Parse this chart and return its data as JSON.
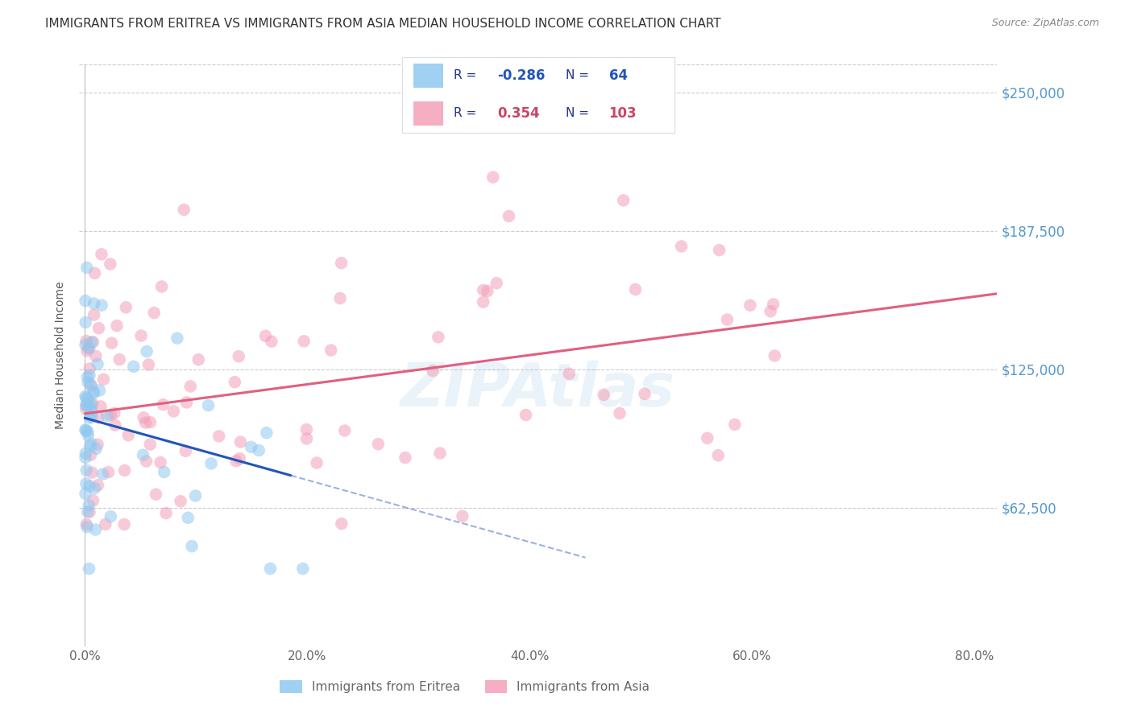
{
  "title": "IMMIGRANTS FROM ERITREA VS IMMIGRANTS FROM ASIA MEDIAN HOUSEHOLD INCOME CORRELATION CHART",
  "source": "Source: ZipAtlas.com",
  "ylabel": "Median Household Income",
  "xlabel_ticks": [
    "0.0%",
    "20.0%",
    "40.0%",
    "60.0%",
    "80.0%"
  ],
  "xlabel_vals": [
    0.0,
    0.2,
    0.4,
    0.6,
    0.8
  ],
  "ytick_labels": [
    "$62,500",
    "$125,000",
    "$187,500",
    "$250,000"
  ],
  "ytick_vals": [
    62500,
    125000,
    187500,
    250000
  ],
  "ylim": [
    0,
    262500
  ],
  "xlim": [
    -0.005,
    0.82
  ],
  "legend_eritrea_R": "-0.286",
  "legend_eritrea_N": "64",
  "legend_asia_R": "0.354",
  "legend_asia_N": "103",
  "eritrea_color": "#90C8F0",
  "asia_color": "#F4A0B8",
  "eritrea_line_color": "#2255BB",
  "asia_line_color": "#E06080",
  "watermark": "ZIPAtlas",
  "background_color": "#FFFFFF",
  "grid_color": "#CCCCCC",
  "title_color": "#333333",
  "axis_label_color": "#5599CC",
  "scatter_alpha": 0.55,
  "scatter_size": 90,
  "legend_label_color": "#334499",
  "legend_value_color_eritrea": "#2255BB",
  "legend_value_color_asia": "#CC4466"
}
